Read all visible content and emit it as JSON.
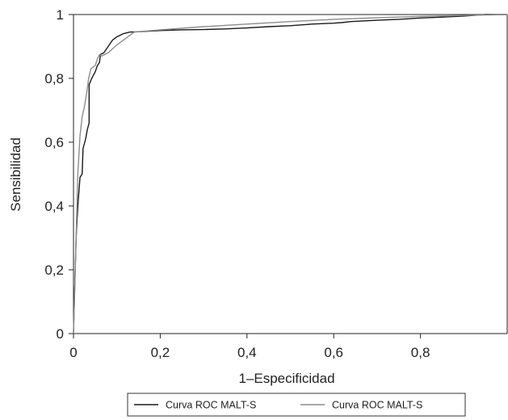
{
  "chart_data": {
    "type": "line",
    "xlabel": "1–Especificidad",
    "ylabel": "Sensibilidad",
    "xlim": [
      0,
      1
    ],
    "ylim": [
      0,
      1
    ],
    "x_ticks": [
      "0",
      "0,2",
      "0,4",
      "0,6",
      "0,8"
    ],
    "x_tick_values": [
      0,
      0.2,
      0.4,
      0.6,
      0.8
    ],
    "y_ticks": [
      "0",
      "0,2",
      "0,4",
      "0,6",
      "0,8",
      "1"
    ],
    "y_tick_values": [
      0,
      0.2,
      0.4,
      0.6,
      0.8,
      1.0
    ],
    "grid": false,
    "legend_position": "bottom",
    "series": [
      {
        "name": "Curva ROC MALT-S",
        "color": "#1a1a1a",
        "points": [
          [
            0,
            0
          ],
          [
            0.002,
            0.1
          ],
          [
            0.004,
            0.2
          ],
          [
            0.006,
            0.3
          ],
          [
            0.01,
            0.4
          ],
          [
            0.015,
            0.49
          ],
          [
            0.02,
            0.5
          ],
          [
            0.022,
            0.58
          ],
          [
            0.028,
            0.61
          ],
          [
            0.032,
            0.64
          ],
          [
            0.036,
            0.66
          ],
          [
            0.036,
            0.78
          ],
          [
            0.042,
            0.8
          ],
          [
            0.05,
            0.82
          ],
          [
            0.055,
            0.84
          ],
          [
            0.06,
            0.85
          ],
          [
            0.062,
            0.875
          ],
          [
            0.07,
            0.88
          ],
          [
            0.08,
            0.9
          ],
          [
            0.09,
            0.92
          ],
          [
            0.1,
            0.93
          ],
          [
            0.115,
            0.94
          ],
          [
            0.13,
            0.945
          ],
          [
            0.15,
            0.946
          ],
          [
            0.2,
            0.95
          ],
          [
            0.25,
            0.952
          ],
          [
            0.3,
            0.953
          ],
          [
            0.35,
            0.955
          ],
          [
            0.4,
            0.958
          ],
          [
            0.45,
            0.962
          ],
          [
            0.5,
            0.965
          ],
          [
            0.55,
            0.97
          ],
          [
            0.6,
            0.973
          ],
          [
            0.62,
            0.975
          ],
          [
            0.64,
            0.978
          ],
          [
            0.7,
            0.982
          ],
          [
            0.75,
            0.985
          ],
          [
            0.8,
            0.989
          ],
          [
            0.85,
            0.992
          ],
          [
            0.9,
            0.995
          ],
          [
            0.93,
            0.998
          ],
          [
            0.95,
            1.0
          ],
          [
            1.0,
            1.0
          ]
        ]
      },
      {
        "name": "Curva ROC MALT-S",
        "color": "#8c8c8c",
        "points": [
          [
            0,
            0
          ],
          [
            0.003,
            0.15
          ],
          [
            0.006,
            0.3
          ],
          [
            0.01,
            0.5
          ],
          [
            0.015,
            0.62
          ],
          [
            0.02,
            0.68
          ],
          [
            0.025,
            0.71
          ],
          [
            0.03,
            0.75
          ],
          [
            0.035,
            0.8
          ],
          [
            0.04,
            0.83
          ],
          [
            0.05,
            0.84
          ],
          [
            0.055,
            0.86
          ],
          [
            0.06,
            0.875
          ],
          [
            0.065,
            0.87
          ],
          [
            0.08,
            0.88
          ],
          [
            0.1,
            0.905
          ],
          [
            0.12,
            0.925
          ],
          [
            0.14,
            0.945
          ],
          [
            0.2,
            0.952
          ],
          [
            0.3,
            0.962
          ],
          [
            0.4,
            0.97
          ],
          [
            0.5,
            0.978
          ],
          [
            0.6,
            0.985
          ],
          [
            0.7,
            0.99
          ],
          [
            0.8,
            0.994
          ],
          [
            0.9,
            0.997
          ],
          [
            1.0,
            1.0
          ]
        ]
      }
    ]
  }
}
